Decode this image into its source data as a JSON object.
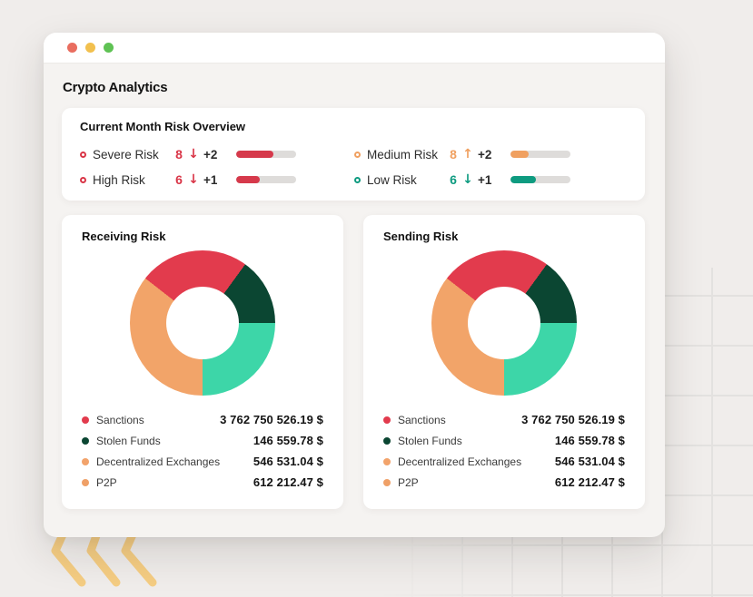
{
  "window": {
    "traffic_lights": [
      {
        "name": "close",
        "color": "#E96D5F"
      },
      {
        "name": "minimize",
        "color": "#F2C04E"
      },
      {
        "name": "zoom",
        "color": "#5FC254"
      }
    ],
    "title": "Crypto Analytics"
  },
  "overview": {
    "title": "Current Month Risk Overview",
    "metrics": [
      {
        "label": "Severe Risk",
        "value": "8",
        "direction": "down",
        "delta": "+2",
        "accent": "#D93547",
        "bar_fill": "#D6394B",
        "bar_pct": 62
      },
      {
        "label": "High Risk",
        "value": "6",
        "direction": "down",
        "delta": "+1",
        "accent": "#D93547",
        "bar_fill": "#D6394B",
        "bar_pct": 40
      },
      {
        "label": "Medium Risk",
        "value": "8",
        "direction": "up",
        "delta": "+2",
        "accent": "#F0A060",
        "bar_fill": "#F0A060",
        "bar_pct": 30
      },
      {
        "label": "Low Risk",
        "value": "6",
        "direction": "down",
        "delta": "+1",
        "accent": "#0E9B80",
        "bar_fill": "#0E9B80",
        "bar_pct": 42
      }
    ],
    "bar_track_color": "#DEDCDA"
  },
  "chart_data": [
    {
      "type": "pie",
      "variant": "donut",
      "title": "Receiving Risk",
      "unit": "$",
      "labels": [
        "Sanctions",
        "Stolen Funds",
        "Decentralized Exchanges",
        "P2P"
      ],
      "values": [
        3762750526.19,
        146559.78,
        546531.04,
        612212.47
      ],
      "display_values": [
        "3 762 750 526.19 $",
        "146 559.78 $",
        "546 531.04 $",
        "612 212.47 $"
      ],
      "legend_dot_colors": [
        "#E23B4D",
        "#0B4632",
        "#F2A36B",
        "#EFA067"
      ],
      "donut": {
        "start_angle_deg": 308,
        "segments": [
          {
            "color": "#E23B4D",
            "sweep_deg": 88
          },
          {
            "color": "#0B4632",
            "sweep_deg": 54
          },
          {
            "color": "#3DD6A8",
            "sweep_deg": 90
          },
          {
            "color": "#F2A469",
            "sweep_deg": 128
          }
        ]
      },
      "legend_position": "bottom"
    },
    {
      "type": "pie",
      "variant": "donut",
      "title": "Sending Risk",
      "unit": "$",
      "labels": [
        "Sanctions",
        "Stolen Funds",
        "Decentralized Exchanges",
        "P2P"
      ],
      "values": [
        3762750526.19,
        146559.78,
        546531.04,
        612212.47
      ],
      "display_values": [
        "3 762 750 526.19 $",
        "146 559.78 $",
        "546 531.04 $",
        "612 212.47 $"
      ],
      "legend_dot_colors": [
        "#E23B4D",
        "#0B4632",
        "#F2A36B",
        "#EFA067"
      ],
      "donut": {
        "start_angle_deg": 308,
        "segments": [
          {
            "color": "#E23B4D",
            "sweep_deg": 88
          },
          {
            "color": "#0B4632",
            "sweep_deg": 54
          },
          {
            "color": "#3DD6A8",
            "sweep_deg": 90
          },
          {
            "color": "#F2A469",
            "sweep_deg": 128
          }
        ]
      },
      "legend_position": "bottom"
    }
  ],
  "decor": {
    "chevron_color": "#F5CD83",
    "grid_line_color": "#E3E1DF"
  },
  "glyphs": {
    "up_arrow": "↑",
    "down_arrow": "↓"
  }
}
